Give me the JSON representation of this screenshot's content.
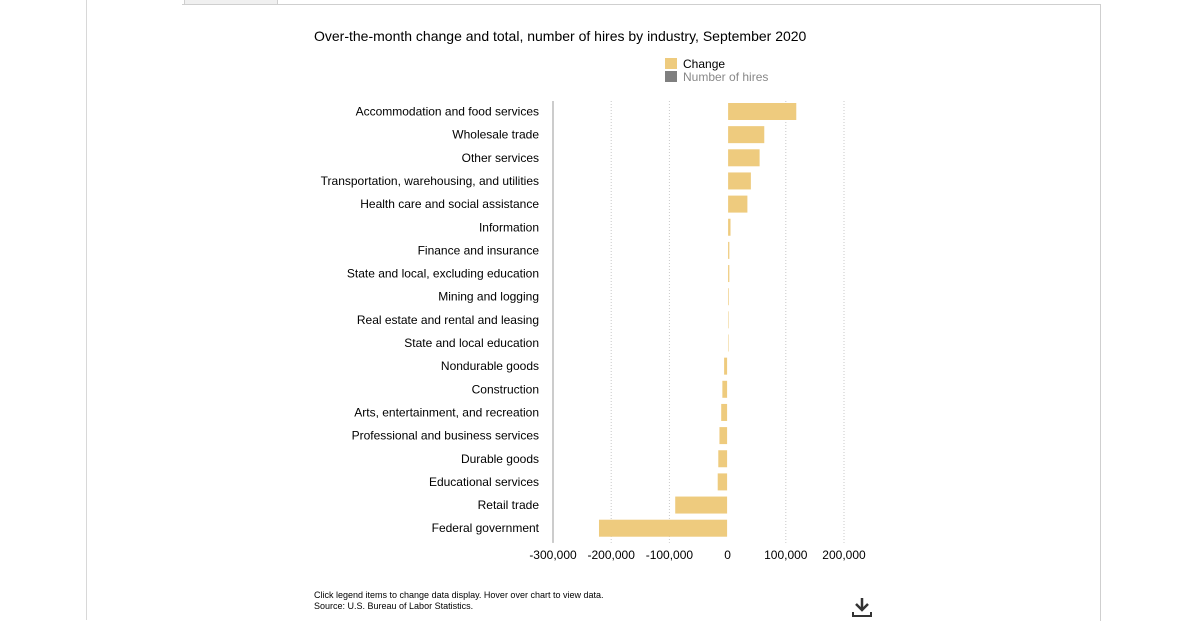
{
  "chart_data": {
    "type": "bar",
    "orientation": "horizontal",
    "title": "Over-the-month change and total, number of hires by industry, September 2020",
    "categories": [
      "Accommodation and food services",
      "Wholesale trade",
      "Other services",
      "Transportation, warehousing, and utilities",
      "Health care and social assistance",
      "Information",
      "Finance and insurance",
      "State and local, excluding education",
      "Mining and logging",
      "Real estate and rental and leasing",
      "State and local education",
      "Nondurable goods",
      "Construction",
      "Arts, entertainment, and recreation",
      "Professional and business services",
      "Durable goods",
      "Educational services",
      "Retail trade",
      "Federal government"
    ],
    "series": [
      {
        "name": "Change",
        "color": "#eecb7e",
        "visible": true,
        "values": [
          118000,
          63000,
          55000,
          40000,
          34000,
          5000,
          3000,
          3000,
          2000,
          1000,
          1000,
          -6000,
          -9000,
          -11000,
          -14000,
          -16000,
          -17000,
          -90000,
          -221000
        ]
      },
      {
        "name": "Number of hires",
        "color": "#7f7f7f",
        "visible": false
      }
    ],
    "x_axis": {
      "ticks": [
        -300000,
        -200000,
        -100000,
        0,
        100000,
        200000
      ],
      "tick_labels": [
        "-300,000",
        "-200,000",
        "-100,000",
        "0",
        "100,000",
        "200,000"
      ],
      "range": [
        -300000,
        200000
      ],
      "grid": "dotted"
    },
    "legend_position": "top-right"
  },
  "footnote": {
    "line1": "Click legend items to change data display. Hover over chart to view data.",
    "line2": "Source: U.S. Bureau of Labor Statistics."
  },
  "icons": {
    "download": "download-icon"
  }
}
